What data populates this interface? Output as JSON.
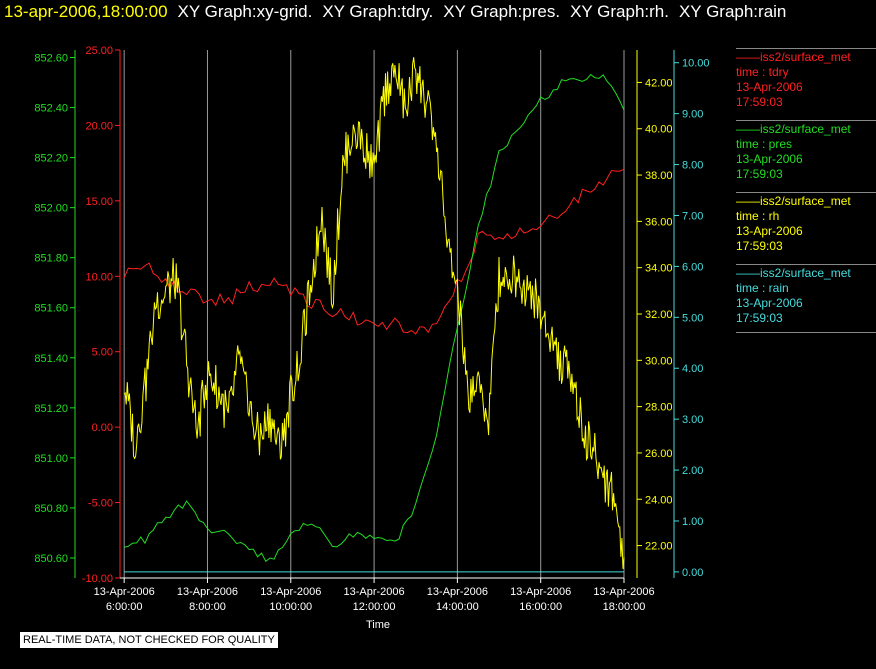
{
  "header": {
    "datetime": "13-apr-2006,18:00:00",
    "titles": [
      "XY Graph:xy-grid.",
      "XY Graph:tdry.",
      "XY Graph:pres.",
      "XY Graph:rh.",
      "XY Graph:rain"
    ]
  },
  "legend": [
    {
      "name": "iss2/surface_met",
      "field": "time : tdry",
      "date": "13-Apr-2006",
      "time": "17:59:03",
      "color": "#ff2020"
    },
    {
      "name": "iss2/surface_met",
      "field": "time : pres",
      "date": "13-Apr-2006",
      "time": "17:59:03",
      "color": "#22dd22"
    },
    {
      "name": "iss2/surface_met",
      "field": "time : rh",
      "date": "13-Apr-2006",
      "time": "17:59:03",
      "color": "#ffff00"
    },
    {
      "name": "iss2/surface_met",
      "field": "time : rain",
      "date": "13-Apr-2006",
      "time": "17:59:03",
      "color": "#44dddd"
    }
  ],
  "disclaimer": "REAL-TIME DATA, NOT CHECKED FOR QUALITY",
  "chart_data": {
    "type": "line",
    "xlabel": "Time",
    "x_ticks": [
      {
        "date": "13-Apr-2006",
        "time": "6:00:00",
        "hour": 6
      },
      {
        "date": "13-Apr-2006",
        "time": "8:00:00",
        "hour": 8
      },
      {
        "date": "13-Apr-2006",
        "time": "10:00:00",
        "hour": 10
      },
      {
        "date": "13-Apr-2006",
        "time": "12:00:00",
        "hour": 12
      },
      {
        "date": "13-Apr-2006",
        "time": "14:00:00",
        "hour": 14
      },
      {
        "date": "13-Apr-2006",
        "time": "16:00:00",
        "hour": 16
      },
      {
        "date": "13-Apr-2006",
        "time": "18:00:00",
        "hour": 18
      }
    ],
    "xlim_hours": [
      5.9,
      18.0
    ],
    "grid": "vertical",
    "axes": [
      {
        "id": "pres",
        "color": "#22dd22",
        "ylim": [
          850.52,
          852.63
        ],
        "ticks": [
          "850.60",
          "850.80",
          "851.00",
          "851.20",
          "851.40",
          "851.60",
          "851.80",
          "852.00",
          "852.20",
          "852.40",
          "852.60"
        ]
      },
      {
        "id": "tdry",
        "color": "#ff2020",
        "ylim": [
          -10.0,
          25.0
        ],
        "ticks": [
          "-10.00",
          "-5.00",
          "0.00",
          "5.00",
          "10.00",
          "15.00",
          "20.00",
          "25.00"
        ]
      },
      {
        "id": "rh",
        "color": "#ffff00",
        "ylim": [
          20.6,
          43.4
        ],
        "ticks": [
          "22.00",
          "24.00",
          "26.00",
          "28.00",
          "30.00",
          "32.00",
          "34.00",
          "36.00",
          "38.00",
          "40.00",
          "42.00"
        ]
      },
      {
        "id": "rain",
        "color": "#44dddd",
        "ylim": [
          -0.12,
          10.25
        ],
        "ticks": [
          "0.00",
          "1.00",
          "2.00",
          "3.00",
          "4.00",
          "5.00",
          "6.00",
          "7.00",
          "8.00",
          "9.00",
          "10.00"
        ]
      }
    ],
    "series": [
      {
        "name": "tdry",
        "axis": "tdry",
        "color": "#ff2020",
        "x": [
          6.0,
          6.5,
          7.0,
          7.5,
          8.0,
          8.5,
          9.0,
          9.5,
          10.0,
          10.5,
          11.0,
          11.5,
          12.0,
          12.5,
          13.0,
          13.5,
          14.0,
          14.5,
          15.0,
          15.5,
          16.0,
          16.5,
          17.0,
          17.5,
          18.0
        ],
        "y": [
          10.2,
          10.8,
          9.6,
          9.0,
          8.5,
          8.4,
          9.2,
          9.6,
          9.0,
          8.3,
          7.7,
          7.2,
          7.0,
          6.8,
          6.4,
          6.6,
          9.4,
          12.6,
          12.3,
          13.0,
          13.6,
          14.3,
          15.4,
          16.3,
          17.1
        ]
      },
      {
        "name": "pres",
        "axis": "pres",
        "color": "#22dd22",
        "x": [
          6.0,
          6.5,
          7.0,
          7.5,
          8.0,
          8.5,
          9.0,
          9.5,
          10.0,
          10.5,
          11.0,
          11.5,
          12.0,
          12.5,
          13.0,
          13.5,
          14.0,
          14.5,
          15.0,
          15.5,
          16.0,
          16.5,
          17.0,
          17.5,
          18.0
        ],
        "y": [
          850.66,
          850.67,
          850.76,
          850.83,
          850.72,
          850.69,
          850.63,
          850.59,
          850.68,
          850.75,
          850.65,
          850.7,
          850.68,
          850.66,
          850.8,
          851.1,
          851.52,
          851.92,
          852.22,
          852.33,
          852.43,
          852.5,
          852.52,
          852.52,
          852.39
        ]
      },
      {
        "name": "rh",
        "axis": "rh",
        "color": "#ffff00",
        "x": [
          6.0,
          6.25,
          6.5,
          6.75,
          7.0,
          7.25,
          7.5,
          7.75,
          8.0,
          8.25,
          8.5,
          8.75,
          9.0,
          9.25,
          9.5,
          9.75,
          10.0,
          10.25,
          10.5,
          10.75,
          11.0,
          11.25,
          11.5,
          11.75,
          12.0,
          12.25,
          12.5,
          12.75,
          13.0,
          13.25,
          13.5,
          13.75,
          14.0,
          14.25,
          14.5,
          14.75,
          15.0,
          15.25,
          15.5,
          15.75,
          16.0,
          16.25,
          16.5,
          16.75,
          17.0,
          17.25,
          17.5,
          17.75,
          18.0
        ],
        "y": [
          29.0,
          26.5,
          28.7,
          32.5,
          33.0,
          33.6,
          30.0,
          26.8,
          29.5,
          28.8,
          27.5,
          30.0,
          27.9,
          26.5,
          27.6,
          26.0,
          28.5,
          30.5,
          33.6,
          36.2,
          32.8,
          38.4,
          40.0,
          39.5,
          38.0,
          41.5,
          42.8,
          40.8,
          42.6,
          41.0,
          39.5,
          35.0,
          33.0,
          28.5,
          29.2,
          27.5,
          33.6,
          33.8,
          33.4,
          33.2,
          32.0,
          31.0,
          29.8,
          29.5,
          27.0,
          26.1,
          25.0,
          24.2,
          21.5
        ]
      },
      {
        "name": "rain",
        "axis": "rain",
        "color": "#44dddd",
        "x": [
          6.0,
          18.0
        ],
        "y": [
          0.0,
          0.0
        ]
      }
    ]
  }
}
